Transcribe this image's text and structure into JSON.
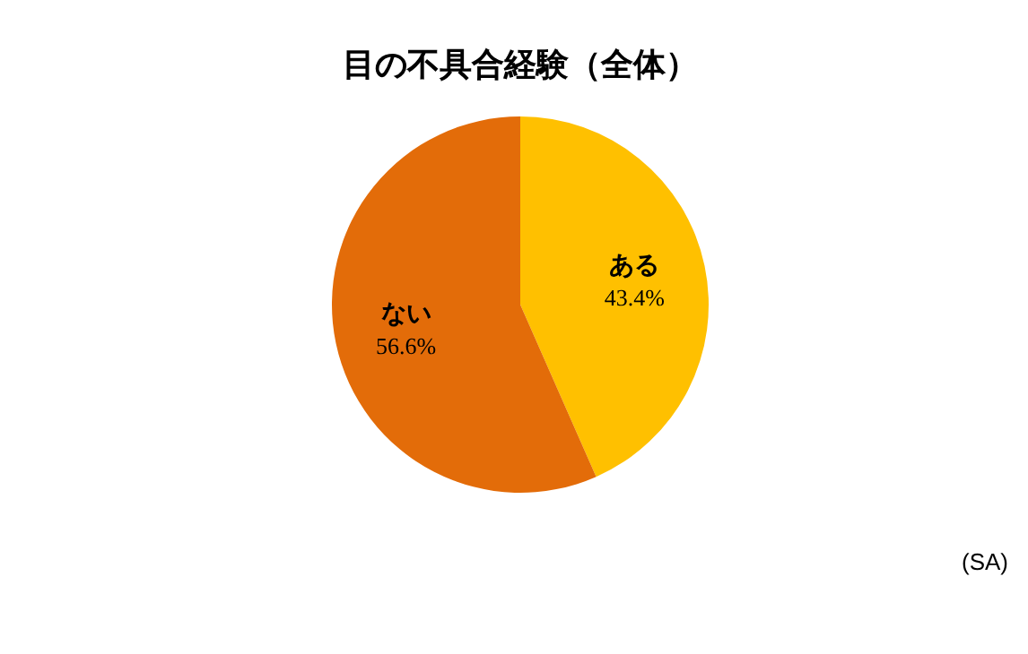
{
  "chart_data": {
    "type": "pie",
    "title": "目の不具合経験（全体）",
    "categories": [
      "ある",
      "ない"
    ],
    "values": [
      43.4,
      56.6
    ],
    "colors": [
      "#ffc000",
      "#e36c09"
    ],
    "value_labels": [
      "43.4%",
      "56.6%"
    ],
    "annotations": [
      "(SA)"
    ]
  }
}
